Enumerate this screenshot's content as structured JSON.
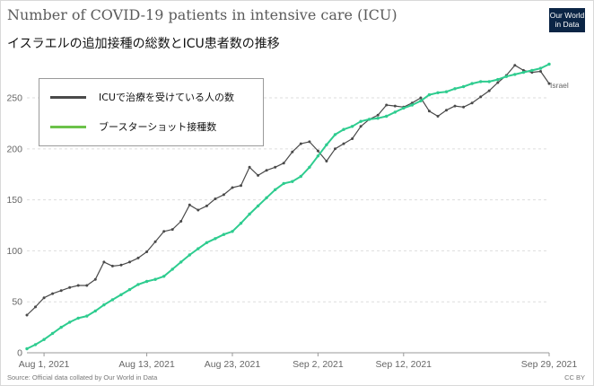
{
  "header": {
    "title": "Number of COVID-19 patients in intensive care (ICU)",
    "subtitle": "イスラエルの追加接種の総数とICU患者数の推移",
    "logo_line1": "Our World",
    "logo_line2": "in Data"
  },
  "footer": {
    "source": "Source: Official data collated by Our World in Data",
    "license": "CC BY"
  },
  "legend": {
    "items": [
      {
        "label": "ICUで治療を受けている人の数",
        "color": "#4a4a4a"
      },
      {
        "label": "ブースターショット接種数",
        "color": "#6cc24a"
      }
    ]
  },
  "colors": {
    "icu": "#4a4a4a",
    "booster": "#2ecc8f",
    "grid": "#dddddd"
  },
  "chart_data": {
    "type": "line",
    "title": "Number of COVID-19 patients in intensive care (ICU)",
    "subtitle": "イスラエルの追加接種の総数とICU患者数の推移",
    "x_start": "2021-07-30",
    "x_end": "2021-09-29",
    "x_ticks": [
      {
        "date": "2021-08-01",
        "label": "Aug 1, 2021"
      },
      {
        "date": "2021-08-13",
        "label": "Aug 13, 2021"
      },
      {
        "date": "2021-08-23",
        "label": "Aug 23, 2021"
      },
      {
        "date": "2021-09-02",
        "label": "Sep 2, 2021"
      },
      {
        "date": "2021-09-12",
        "label": "Sep 12, 2021"
      },
      {
        "date": "2021-09-29",
        "label": "Sep 29, 2021"
      }
    ],
    "ylim": [
      0,
      287
    ],
    "y_ticks": [
      0,
      50,
      100,
      150,
      200,
      250
    ],
    "grid": "horizontal dashed",
    "end_label": "Israel",
    "series": [
      {
        "name": "ICUで治療を受けている人の数",
        "values": [
          [
            "2021-07-30",
            37
          ],
          [
            "2021-07-31",
            45
          ],
          [
            "2021-08-01",
            54
          ],
          [
            "2021-08-02",
            58
          ],
          [
            "2021-08-03",
            61
          ],
          [
            "2021-08-04",
            64
          ],
          [
            "2021-08-05",
            66
          ],
          [
            "2021-08-06",
            66
          ],
          [
            "2021-08-07",
            72
          ],
          [
            "2021-08-08",
            89
          ],
          [
            "2021-08-09",
            85
          ],
          [
            "2021-08-10",
            86
          ],
          [
            "2021-08-11",
            89
          ],
          [
            "2021-08-12",
            93
          ],
          [
            "2021-08-13",
            99
          ],
          [
            "2021-08-14",
            109
          ],
          [
            "2021-08-15",
            119
          ],
          [
            "2021-08-16",
            121
          ],
          [
            "2021-08-17",
            129
          ],
          [
            "2021-08-18",
            145
          ],
          [
            "2021-08-19",
            140
          ],
          [
            "2021-08-20",
            144
          ],
          [
            "2021-08-21",
            151
          ],
          [
            "2021-08-22",
            155
          ],
          [
            "2021-08-23",
            162
          ],
          [
            "2021-08-24",
            164
          ],
          [
            "2021-08-25",
            182
          ],
          [
            "2021-08-26",
            174
          ],
          [
            "2021-08-27",
            179
          ],
          [
            "2021-08-28",
            182
          ],
          [
            "2021-08-29",
            186
          ],
          [
            "2021-08-30",
            197
          ],
          [
            "2021-08-31",
            205
          ],
          [
            "2021-09-01",
            207
          ],
          [
            "2021-09-02",
            198
          ],
          [
            "2021-09-03",
            188
          ],
          [
            "2021-09-04",
            200
          ],
          [
            "2021-09-05",
            205
          ],
          [
            "2021-09-06",
            210
          ],
          [
            "2021-09-07",
            222
          ],
          [
            "2021-09-08",
            229
          ],
          [
            "2021-09-09",
            233
          ],
          [
            "2021-09-10",
            243
          ],
          [
            "2021-09-11",
            242
          ],
          [
            "2021-09-12",
            241
          ],
          [
            "2021-09-13",
            245
          ],
          [
            "2021-09-14",
            250
          ],
          [
            "2021-09-15",
            237
          ],
          [
            "2021-09-16",
            232
          ],
          [
            "2021-09-17",
            238
          ],
          [
            "2021-09-18",
            242
          ],
          [
            "2021-09-19",
            241
          ],
          [
            "2021-09-20",
            245
          ],
          [
            "2021-09-21",
            251
          ],
          [
            "2021-09-22",
            257
          ],
          [
            "2021-09-23",
            265
          ],
          [
            "2021-09-24",
            272
          ],
          [
            "2021-09-25",
            282
          ],
          [
            "2021-09-26",
            277
          ],
          [
            "2021-09-27",
            275
          ],
          [
            "2021-09-28",
            276
          ],
          [
            "2021-09-29",
            264
          ]
        ]
      },
      {
        "name": "ブースターショット接種数",
        "values": [
          [
            "2021-07-30",
            4
          ],
          [
            "2021-07-31",
            8
          ],
          [
            "2021-08-01",
            13
          ],
          [
            "2021-08-02",
            19
          ],
          [
            "2021-08-03",
            25
          ],
          [
            "2021-08-04",
            30
          ],
          [
            "2021-08-05",
            34
          ],
          [
            "2021-08-06",
            36
          ],
          [
            "2021-08-07",
            41
          ],
          [
            "2021-08-08",
            47
          ],
          [
            "2021-08-09",
            52
          ],
          [
            "2021-08-10",
            57
          ],
          [
            "2021-08-11",
            62
          ],
          [
            "2021-08-12",
            67
          ],
          [
            "2021-08-13",
            70
          ],
          [
            "2021-08-14",
            72
          ],
          [
            "2021-08-15",
            75
          ],
          [
            "2021-08-16",
            82
          ],
          [
            "2021-08-17",
            89
          ],
          [
            "2021-08-18",
            96
          ],
          [
            "2021-08-19",
            102
          ],
          [
            "2021-08-20",
            108
          ],
          [
            "2021-08-21",
            112
          ],
          [
            "2021-08-22",
            116
          ],
          [
            "2021-08-23",
            119
          ],
          [
            "2021-08-24",
            127
          ],
          [
            "2021-08-25",
            136
          ],
          [
            "2021-08-26",
            144
          ],
          [
            "2021-08-27",
            152
          ],
          [
            "2021-08-28",
            160
          ],
          [
            "2021-08-29",
            166
          ],
          [
            "2021-08-30",
            168
          ],
          [
            "2021-08-31",
            173
          ],
          [
            "2021-09-01",
            182
          ],
          [
            "2021-09-02",
            193
          ],
          [
            "2021-09-03",
            204
          ],
          [
            "2021-09-04",
            214
          ],
          [
            "2021-09-05",
            219
          ],
          [
            "2021-09-06",
            222
          ],
          [
            "2021-09-07",
            227
          ],
          [
            "2021-09-08",
            229
          ],
          [
            "2021-09-09",
            230
          ],
          [
            "2021-09-10",
            232
          ],
          [
            "2021-09-11",
            236
          ],
          [
            "2021-09-12",
            240
          ],
          [
            "2021-09-13",
            243
          ],
          [
            "2021-09-14",
            247
          ],
          [
            "2021-09-15",
            253
          ],
          [
            "2021-09-16",
            255
          ],
          [
            "2021-09-17",
            256
          ],
          [
            "2021-09-18",
            259
          ],
          [
            "2021-09-19",
            261
          ],
          [
            "2021-09-20",
            264
          ],
          [
            "2021-09-21",
            266
          ],
          [
            "2021-09-22",
            266
          ],
          [
            "2021-09-23",
            268
          ],
          [
            "2021-09-24",
            271
          ],
          [
            "2021-09-25",
            273
          ],
          [
            "2021-09-26",
            275
          ],
          [
            "2021-09-27",
            277
          ],
          [
            "2021-09-28",
            279
          ],
          [
            "2021-09-29",
            283
          ]
        ]
      }
    ]
  }
}
